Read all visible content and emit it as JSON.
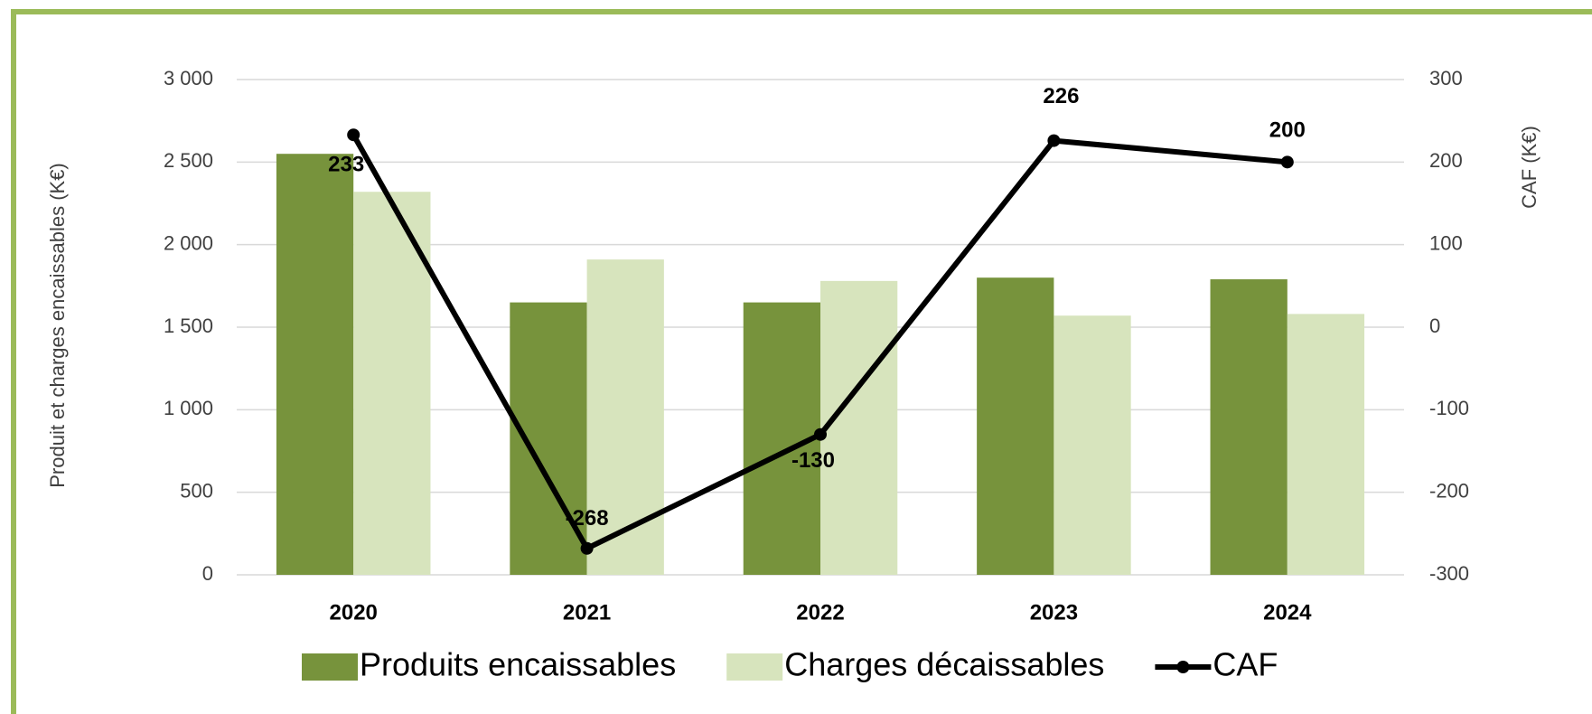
{
  "chart_data": {
    "type": "bar",
    "categories": [
      "2020",
      "2021",
      "2022",
      "2023",
      "2024"
    ],
    "series": [
      {
        "name": "Produits encaissables",
        "color": "#77933c",
        "values": [
          2550,
          1650,
          1650,
          1800,
          1790
        ]
      },
      {
        "name": "Charges décaissables",
        "color": "#d7e4bd",
        "values": [
          2320,
          1910,
          1780,
          1570,
          1580
        ]
      },
      {
        "name": "CAF",
        "color": "#000000",
        "type": "line",
        "axis": "y2",
        "values": [
          233,
          -268,
          -130,
          226,
          200
        ]
      }
    ],
    "y_label": "Produit et charges encaissables (K€)",
    "y2_label": "CAF (K€)",
    "ylim": [
      0,
      3000
    ],
    "yticks": [
      0,
      500,
      {
        "value": 1000,
        "label": "1 000"
      },
      {
        "value": 1500,
        "label": "1 500"
      },
      {
        "value": 2000,
        "label": "2 000"
      },
      {
        "value": 2500,
        "label": "2 500"
      },
      {
        "value": 3000,
        "label": "3 000"
      }
    ],
    "y2lim": [
      -300,
      300
    ],
    "y2ticks": [
      -300,
      -200,
      -100,
      0,
      100,
      200,
      300
    ],
    "grid": true,
    "legend": "bottom"
  }
}
